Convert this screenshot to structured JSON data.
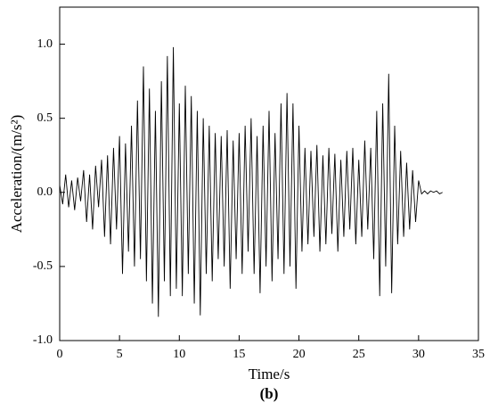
{
  "chart_data": {
    "type": "line",
    "caption": "(b)",
    "x_label": "Time/s",
    "y_label": "Acceleration/(m/s²)",
    "color": "#000000",
    "xlim": [
      0,
      35
    ],
    "xticks": [
      0,
      5,
      10,
      15,
      20,
      25,
      30,
      35
    ],
    "ylim": [
      -1.0,
      1.25
    ],
    "yticks": [
      {
        "value": -1.0,
        "label": "-1.0"
      },
      {
        "value": -0.5,
        "label": "-0.5"
      },
      {
        "value": 0,
        "label": "0.0"
      },
      {
        "value": 0.5,
        "label": "0.5"
      },
      {
        "value": 1.0,
        "label": "1.0"
      }
    ],
    "x": [
      0,
      0.25,
      0.5,
      0.75,
      1,
      1.25,
      1.5,
      1.75,
      2,
      2.25,
      2.5,
      2.75,
      3,
      3.25,
      3.5,
      3.75,
      4,
      4.25,
      4.5,
      4.75,
      5,
      5.25,
      5.5,
      5.75,
      6,
      6.25,
      6.5,
      6.75,
      7,
      7.25,
      7.5,
      7.75,
      8,
      8.25,
      8.5,
      8.75,
      9,
      9.25,
      9.5,
      9.75,
      10,
      10.25,
      10.5,
      10.75,
      11,
      11.25,
      11.5,
      11.75,
      12,
      12.25,
      12.5,
      12.75,
      13,
      13.25,
      13.5,
      13.75,
      14,
      14.25,
      14.5,
      14.75,
      15,
      15.25,
      15.5,
      15.75,
      16,
      16.25,
      16.5,
      16.75,
      17,
      17.25,
      17.5,
      17.75,
      18,
      18.25,
      18.5,
      18.75,
      19,
      19.25,
      19.5,
      19.75,
      20,
      20.25,
      20.5,
      20.75,
      21,
      21.25,
      21.5,
      21.75,
      22,
      22.25,
      22.5,
      22.75,
      23,
      23.25,
      23.5,
      23.75,
      24,
      24.25,
      24.5,
      24.75,
      25,
      25.25,
      25.5,
      25.75,
      26,
      26.25,
      26.5,
      26.75,
      27,
      27.25,
      27.5,
      27.75,
      28,
      28.25,
      28.5,
      28.75,
      29,
      29.25,
      29.5,
      29.75,
      30,
      30.25,
      30.5,
      30.75,
      31,
      31.25,
      31.5,
      31.75,
      32
    ],
    "values": [
      0.05,
      -0.08,
      0.12,
      -0.1,
      0.08,
      -0.12,
      0.1,
      -0.06,
      0.15,
      -0.2,
      0.12,
      -0.25,
      0.18,
      -0.1,
      0.22,
      -0.3,
      0.25,
      -0.35,
      0.3,
      -0.25,
      0.38,
      -0.55,
      0.33,
      -0.4,
      0.45,
      -0.5,
      0.62,
      -0.45,
      0.85,
      -0.6,
      0.7,
      -0.75,
      0.55,
      -0.84,
      0.75,
      -0.6,
      0.92,
      -0.7,
      0.98,
      -0.65,
      0.6,
      -0.7,
      0.72,
      -0.55,
      0.65,
      -0.75,
      0.55,
      -0.83,
      0.5,
      -0.55,
      0.45,
      -0.6,
      0.4,
      -0.45,
      0.38,
      -0.5,
      0.42,
      -0.65,
      0.35,
      -0.45,
      0.4,
      -0.55,
      0.45,
      -0.4,
      0.5,
      -0.55,
      0.38,
      -0.68,
      0.45,
      -0.5,
      0.55,
      -0.6,
      0.4,
      -0.45,
      0.6,
      -0.55,
      0.67,
      -0.5,
      0.6,
      -0.65,
      0.45,
      -0.4,
      0.3,
      -0.35,
      0.28,
      -0.3,
      0.32,
      -0.4,
      0.25,
      -0.35,
      0.3,
      -0.28,
      0.26,
      -0.4,
      0.22,
      -0.3,
      0.28,
      -0.25,
      0.3,
      -0.35,
      0.22,
      -0.3,
      0.35,
      -0.25,
      0.3,
      -0.45,
      0.55,
      -0.7,
      0.6,
      -0.5,
      0.8,
      -0.68,
      0.45,
      -0.35,
      0.28,
      -0.3,
      0.2,
      -0.25,
      0.15,
      -0.2,
      0.08,
      -0.01,
      0.01,
      -0.01,
      0.01,
      0,
      0.01,
      -0.01,
      0
    ]
  }
}
